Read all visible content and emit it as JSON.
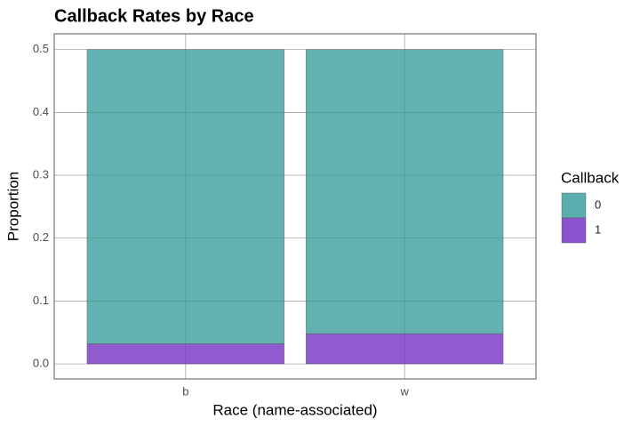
{
  "chart_data": {
    "type": "stacked-bar",
    "title": "Callback Rates by Race",
    "x_label": "Race (name-associated)",
    "y_label": "Proportion",
    "categories": [
      "b",
      "w"
    ],
    "legend_title": "Callback",
    "series": [
      {
        "name": "0",
        "color": "#5aaeae",
        "values": [
          0.468,
          0.452
        ]
      },
      {
        "name": "1",
        "color": "#8a52cc",
        "values": [
          0.032,
          0.048
        ]
      }
    ],
    "ylim": [
      -0.024,
      0.525
    ],
    "yticks": [
      {
        "value": 0,
        "label": "0.0"
      },
      0.1,
      0.2,
      0.3,
      0.4,
      0.5
    ],
    "grid": true,
    "legend": "right"
  }
}
